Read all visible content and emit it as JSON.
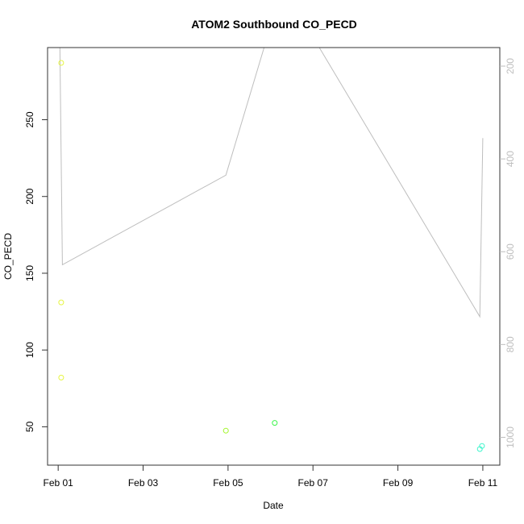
{
  "chart_data": {
    "type": "scatter",
    "title": "ATOM2 Southbound CO_PECD",
    "xlabel": "Date",
    "ylabel": "CO_PECD",
    "x_ticks": [
      "Feb 01",
      "Feb 03",
      "Feb 05",
      "Feb 07",
      "Feb 09",
      "Feb 11"
    ],
    "x_tick_values": [
      0,
      2,
      4,
      6,
      8,
      10
    ],
    "xlim": [
      -0.25,
      10.4
    ],
    "y_ticks": [
      50,
      100,
      150,
      200,
      250
    ],
    "ylim": [
      25,
      297
    ],
    "y2_ticks": [
      200,
      400,
      600,
      800,
      1000
    ],
    "y2lim": [
      1060,
      160
    ],
    "y2_reversed": true,
    "line_color": "#bebebe",
    "points": [
      {
        "x": 0.07,
        "y": 287,
        "color": "#e6f542"
      },
      {
        "x": 0.07,
        "y": 131,
        "color": "#e6f542"
      },
      {
        "x": 0.07,
        "y": 82,
        "color": "#e6f542"
      },
      {
        "x": 3.95,
        "y": 47.5,
        "color": "#a2f52a"
      },
      {
        "x": 5.1,
        "y": 52.5,
        "color": "#3cf54b"
      },
      {
        "x": 9.93,
        "y": 35.5,
        "color": "#3ef5cc"
      },
      {
        "x": 9.98,
        "y": 37.5,
        "color": "#3ef5cc"
      }
    ],
    "line": [
      {
        "x": 0.04,
        "y2": 160
      },
      {
        "x": 0.1,
        "y2": 628
      },
      {
        "x": 3.95,
        "y2": 435
      },
      {
        "x": 4.85,
        "y2": 160
      },
      {
        "x": 6.15,
        "y2": 160
      },
      {
        "x": 9.93,
        "y2": 740
      },
      {
        "x": 10.0,
        "y2": 355
      }
    ]
  }
}
